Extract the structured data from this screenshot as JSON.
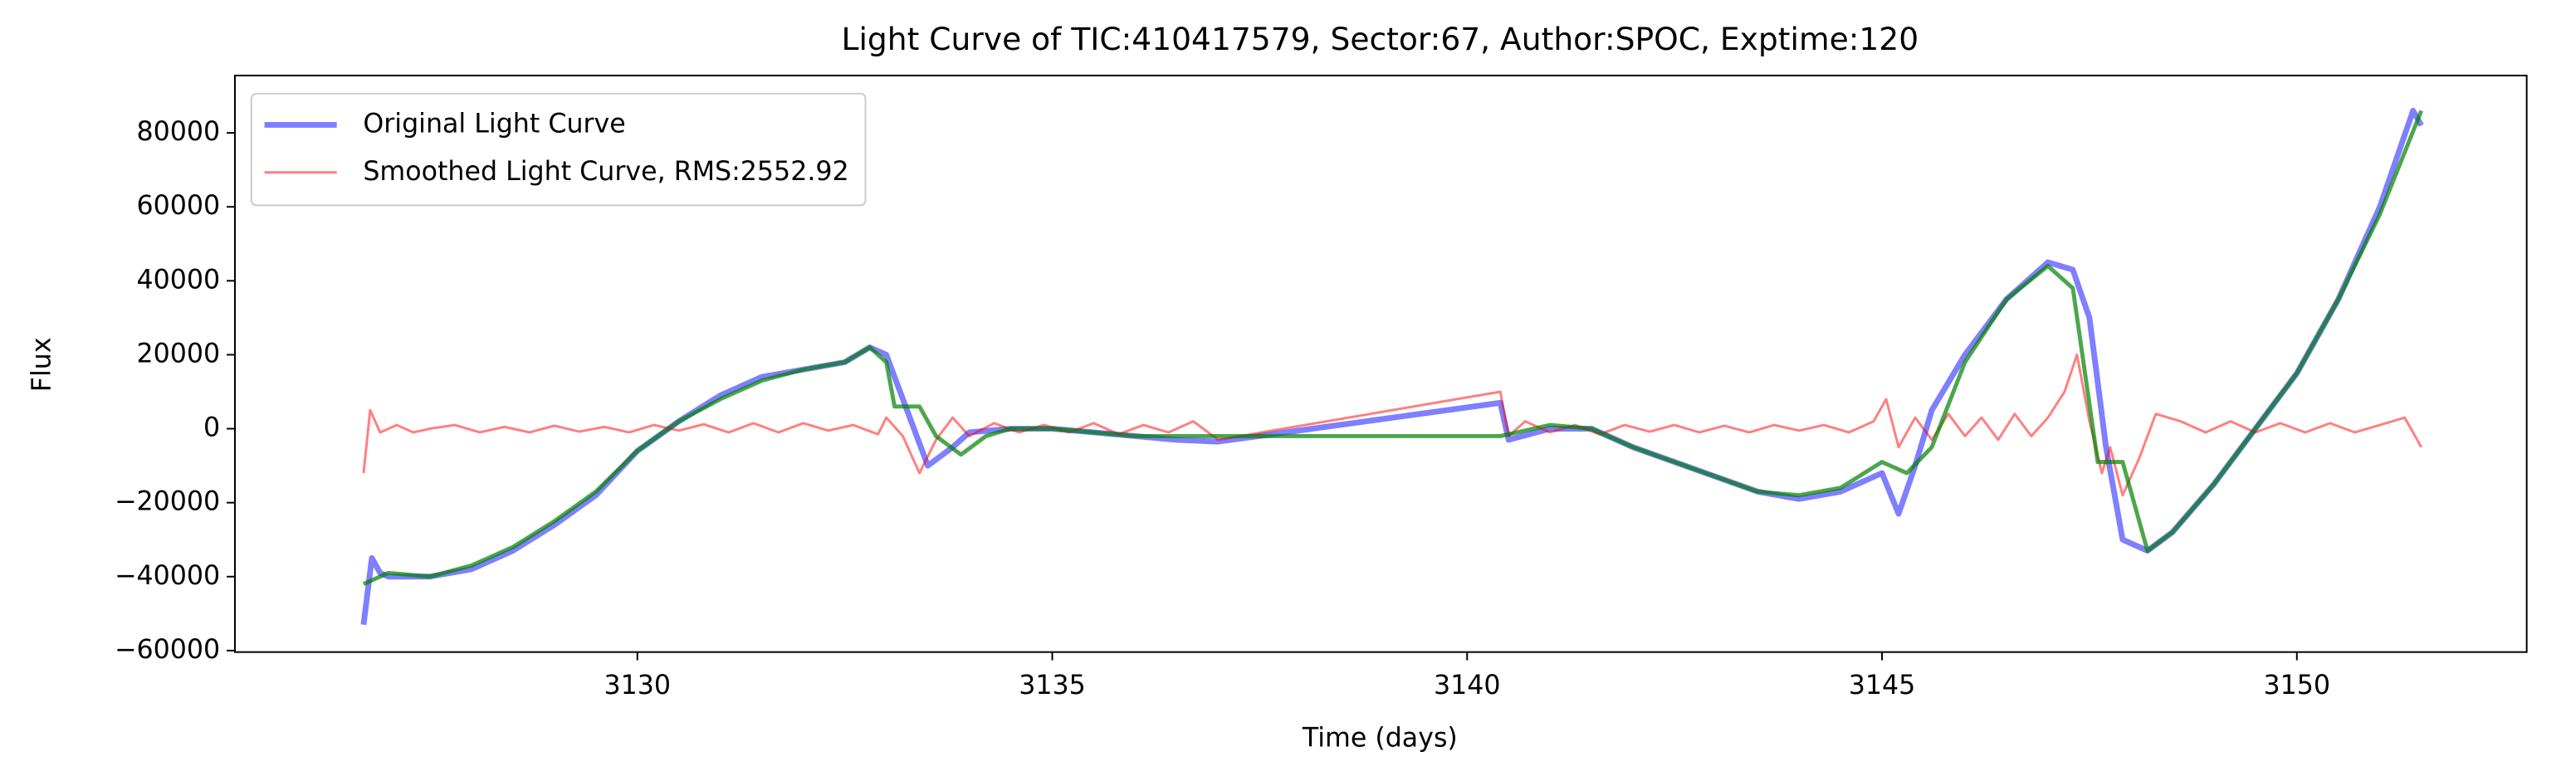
{
  "chart_data": {
    "type": "line",
    "title": "Light Curve of TIC:410417579, Sector:67, Author:SPOC, Exptime:120",
    "x_label": "Time (days)",
    "y_label": "Flux",
    "xlim": [
      3125.15,
      3152.77
    ],
    "ylim": [
      -60400,
      95500
    ],
    "xticks": [
      3130,
      3135,
      3140,
      3145,
      3150
    ],
    "yticks": [
      {
        "value": -60000,
        "label": "−60000"
      },
      {
        "value": -40000,
        "label": "−40000"
      },
      {
        "value": -20000,
        "label": "−20000"
      },
      0,
      20000,
      40000,
      60000,
      80000
    ],
    "grid": false,
    "legend": "upper left",
    "series": [
      {
        "name": "Original Light Curve",
        "color": "#0000ff",
        "alpha": 0.5,
        "x": [
          3126.7,
          3126.8,
          3126.9,
          3127.0,
          3127.5,
          3128.0,
          3128.5,
          3129.0,
          3129.5,
          3130.0,
          3130.5,
          3131.0,
          3131.5,
          3132.0,
          3132.5,
          3132.8,
          3133.0,
          3133.2,
          3133.5,
          3133.8,
          3134.0,
          3134.5,
          3135.0,
          3135.5,
          3136.0,
          3136.5,
          3137.0,
          3140.4,
          3140.5,
          3141.0,
          3141.5,
          3142.0,
          3142.5,
          3143.0,
          3143.5,
          3144.0,
          3144.5,
          3145.0,
          3145.2,
          3145.4,
          3145.6,
          3146.0,
          3146.5,
          3147.0,
          3147.3,
          3147.5,
          3147.7,
          3147.9,
          3148.2,
          3148.5,
          3149.0,
          3149.5,
          3150.0,
          3150.5,
          3151.0,
          3151.4,
          3151.5
        ],
        "values": [
          -53000,
          -35000,
          -39000,
          -40000,
          -40000,
          -38000,
          -33000,
          -26000,
          -18000,
          -6000,
          2000,
          9000,
          14000,
          16000,
          18000,
          22000,
          20000,
          8000,
          -10000,
          -5000,
          -1000,
          0,
          0,
          -1000,
          -2000,
          -3000,
          -3500,
          7000,
          -3000,
          0,
          0,
          -5000,
          -9000,
          -13000,
          -17000,
          -19000,
          -17000,
          -12000,
          -23000,
          -10000,
          5000,
          20000,
          35000,
          45000,
          43000,
          30000,
          -5000,
          -30000,
          -33000,
          -28000,
          -15000,
          0,
          15000,
          35000,
          60000,
          86000,
          82000
        ]
      },
      {
        "name": "Smoothed Light Curve, RMS:2552.92",
        "color": "#ff0000",
        "alpha": 0.5,
        "x": [
          3126.7,
          3126.78,
          3126.9,
          3127.1,
          3127.3,
          3127.5,
          3127.8,
          3128.1,
          3128.4,
          3128.7,
          3129.0,
          3129.3,
          3129.6,
          3129.9,
          3130.2,
          3130.5,
          3130.8,
          3131.1,
          3131.4,
          3131.7,
          3132.0,
          3132.3,
          3132.6,
          3132.9,
          3133.0,
          3133.2,
          3133.4,
          3133.6,
          3133.8,
          3134.0,
          3134.3,
          3134.6,
          3134.9,
          3135.2,
          3135.5,
          3135.8,
          3136.1,
          3136.4,
          3136.7,
          3137.0,
          3140.4,
          3140.5,
          3140.7,
          3141.0,
          3141.3,
          3141.6,
          3141.9,
          3142.2,
          3142.5,
          3142.8,
          3143.1,
          3143.4,
          3143.7,
          3144.0,
          3144.3,
          3144.6,
          3144.9,
          3145.05,
          3145.2,
          3145.4,
          3145.6,
          3145.8,
          3146.0,
          3146.2,
          3146.4,
          3146.6,
          3146.8,
          3147.0,
          3147.2,
          3147.35,
          3147.5,
          3147.65,
          3147.75,
          3147.9,
          3148.1,
          3148.3,
          3148.6,
          3148.9,
          3149.2,
          3149.5,
          3149.8,
          3150.1,
          3150.4,
          3150.7,
          3151.0,
          3151.3,
          3151.5
        ],
        "values": [
          -12000,
          5000,
          -1000,
          1000,
          -1000,
          0,
          1000,
          -1000,
          500,
          -1000,
          800,
          -800,
          500,
          -1000,
          1000,
          -500,
          1200,
          -1000,
          1500,
          -1000,
          1500,
          -500,
          1000,
          -1500,
          3000,
          -2000,
          -12000,
          -3000,
          3000,
          -2000,
          1500,
          -1000,
          1000,
          -1000,
          1500,
          -1500,
          1000,
          -1000,
          2000,
          -3000,
          10000,
          -2000,
          2000,
          -1000,
          1000,
          -1500,
          1000,
          -800,
          1000,
          -1000,
          800,
          -1000,
          1000,
          -500,
          1000,
          -1000,
          2000,
          8000,
          -5000,
          3000,
          -3000,
          4000,
          -2000,
          3000,
          -3000,
          4000,
          -2000,
          3000,
          10000,
          20000,
          2000,
          -12000,
          -5000,
          -18000,
          -8000,
          4000,
          2000,
          -1000,
          2000,
          -1000,
          1500,
          -1000,
          1500,
          -1000,
          1000,
          3000,
          -5000
        ]
      },
      {
        "color": "#008000",
        "alpha": 0.7,
        "x": [
          3126.7,
          3127.0,
          3127.5,
          3128.0,
          3128.5,
          3129.0,
          3129.5,
          3130.0,
          3130.5,
          3131.0,
          3131.5,
          3132.0,
          3132.5,
          3132.8,
          3133.0,
          3133.1,
          3133.4,
          3133.6,
          3133.9,
          3134.2,
          3134.5,
          3135.0,
          3135.5,
          3136.0,
          3136.5,
          3137.0,
          3140.4,
          3140.6,
          3141.0,
          3141.5,
          3142.0,
          3142.5,
          3143.0,
          3143.5,
          3144.0,
          3144.5,
          3145.0,
          3145.3,
          3145.6,
          3146.0,
          3146.5,
          3147.0,
          3147.3,
          3147.6,
          3147.9,
          3148.2,
          3148.5,
          3149.0,
          3149.5,
          3150.0,
          3150.5,
          3151.0,
          3151.5
        ],
        "values": [
          -42000,
          -39000,
          -40000,
          -37000,
          -32000,
          -25000,
          -17000,
          -6000,
          2000,
          8000,
          13000,
          16000,
          18000,
          22000,
          18000,
          6000,
          6000,
          -2000,
          -7000,
          -2000,
          0,
          0,
          -1000,
          -2000,
          -2000,
          -2000,
          -2000,
          -1000,
          1000,
          0,
          -5000,
          -9000,
          -13000,
          -17000,
          -18000,
          -16000,
          -9000,
          -12000,
          -5000,
          18000,
          35000,
          44000,
          38000,
          -9000,
          -9000,
          -33000,
          -28000,
          -15000,
          0,
          15000,
          35000,
          58000,
          86000
        ]
      }
    ]
  }
}
